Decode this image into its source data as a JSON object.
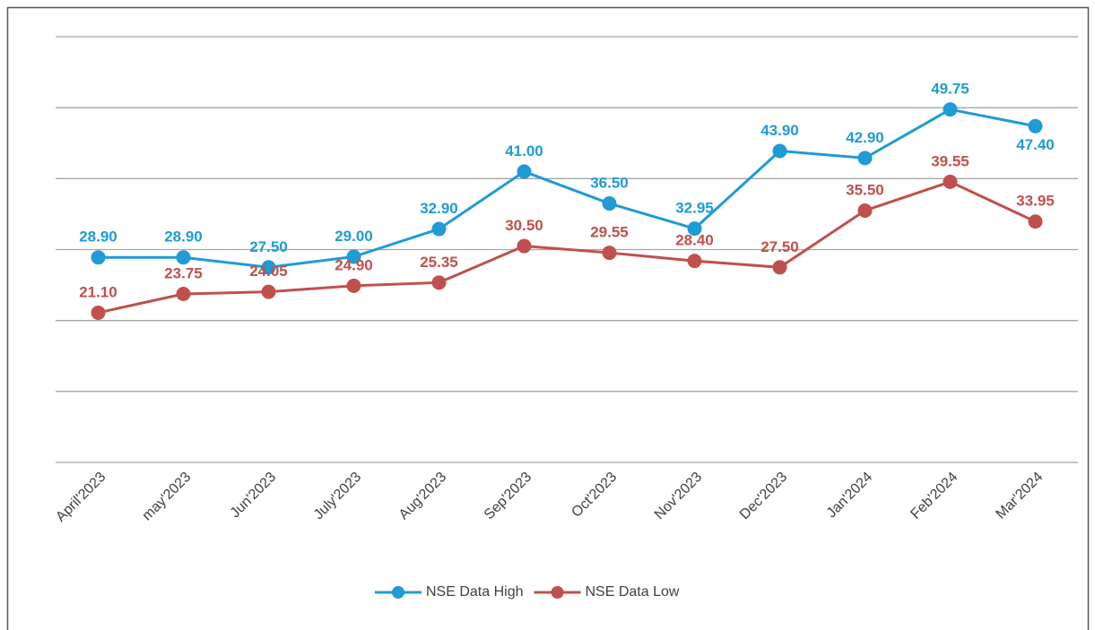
{
  "chart_data": {
    "type": "line",
    "categories": [
      "April'2023",
      "may'2023",
      "Jun'2023",
      "July'2023",
      "Aug'2023",
      "Sep'2023",
      "Oct'2023",
      "Nov'2023",
      "Dec'2023",
      "Jan'2024",
      "Feb'2024",
      "Mar'2024"
    ],
    "series": [
      {
        "name": "NSE Data High",
        "color": "#1f9bd6",
        "values": [
          28.9,
          28.9,
          27.5,
          29.0,
          32.9,
          41.0,
          36.5,
          32.95,
          43.9,
          42.9,
          49.75,
          47.4
        ],
        "value_labels": [
          "28.90",
          "28.90",
          "27.50",
          "29.00",
          "32.90",
          "41.00",
          "36.50",
          "32.95",
          "43.90",
          "42.90",
          "49.75",
          "47.40"
        ]
      },
      {
        "name": "NSE Data Low",
        "color": "#c0504d",
        "values": [
          21.1,
          23.75,
          24.05,
          24.9,
          25.35,
          30.5,
          29.55,
          28.4,
          27.5,
          35.5,
          39.55,
          33.95
        ],
        "value_labels": [
          "21.10",
          "23.75",
          "24.05",
          "24.90",
          "25.35",
          "30.50",
          "29.55",
          "28.40",
          "27.50",
          "35.50",
          "39.55",
          "33.95"
        ]
      }
    ],
    "ylim": [
      0,
      60
    ],
    "yticks": [
      0,
      10,
      20,
      30,
      40,
      50,
      60
    ],
    "grid": true,
    "legend": "bottom"
  }
}
